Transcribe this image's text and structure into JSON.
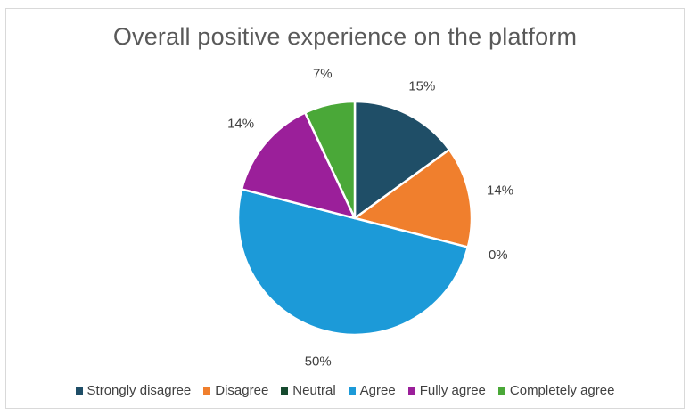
{
  "chart_data": {
    "type": "pie",
    "title": "Overall positive experience on the platform",
    "categories": [
      "Strongly disagree",
      "Disagree",
      "Neutral",
      "Agree",
      "Fully agree",
      "Completely agree"
    ],
    "values": [
      15,
      14,
      0,
      50,
      14,
      7
    ],
    "data_labels": [
      "15%",
      "14%",
      "0%",
      "50%",
      "14%",
      "7%"
    ],
    "colors": [
      "#1f4e67",
      "#f07f2d",
      "#164a2f",
      "#1c9ad8",
      "#9b1f9a",
      "#4aa838"
    ],
    "legend_position": "bottom",
    "start_angle_deg": 0,
    "direction": "clockwise"
  }
}
